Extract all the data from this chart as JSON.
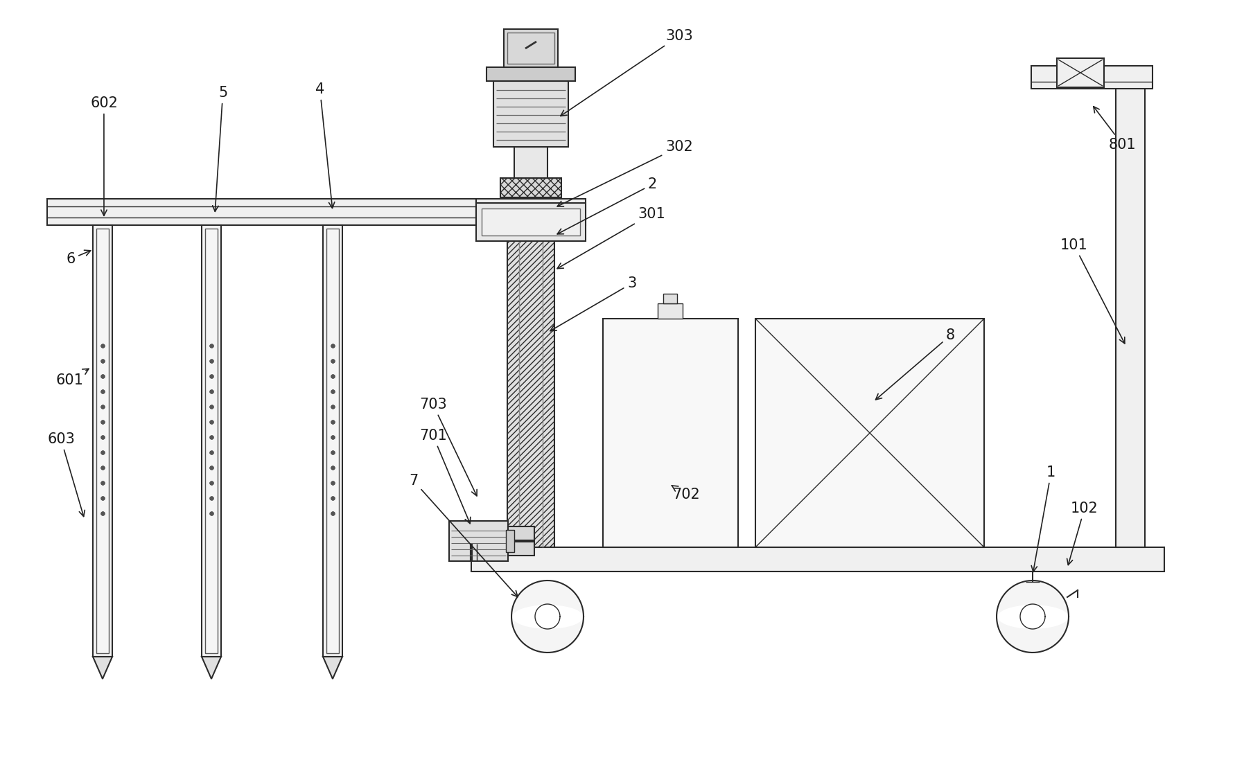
{
  "bg_color": "#ffffff",
  "lc": "#2a2a2a",
  "lw_main": 1.5,
  "lw_thin": 1.0,
  "fc_light": "#f5f5f5",
  "fc_mid": "#e8e8e8",
  "fc_dark": "#d0d0d0",
  "label_fs": 15,
  "label_color": "#1a1a1a"
}
